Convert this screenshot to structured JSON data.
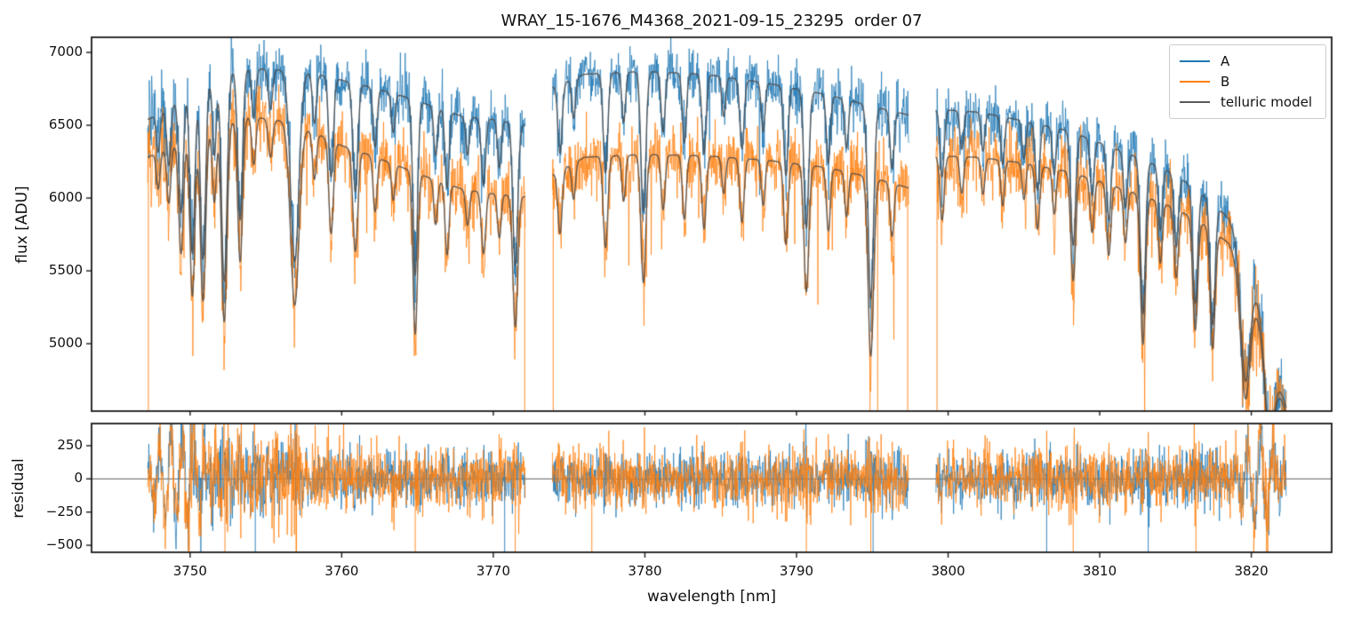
{
  "title": "WRAY_15-1676_M4368_2021-09-15_23295  order 07",
  "legend": {
    "location": "upper right",
    "items": [
      {
        "label": "A",
        "color": "#1f77b4"
      },
      {
        "label": "B",
        "color": "#ff7f0e"
      },
      {
        "label": "telluric model",
        "color": "#595959"
      }
    ]
  },
  "colors": {
    "series_A": "#1f77b4",
    "series_B": "#ff7f0e",
    "telluric_model": "#4a4a4a",
    "zero_line": "#606060",
    "spine": "#1a1a1a"
  },
  "chart_data": {
    "type": "line",
    "title": "WRAY_15-1676_M4368_2021-09-15_23295  order 07",
    "xlabel": "wavelength [nm]",
    "xlim": [
      3743.5,
      3825.3
    ],
    "xticks": [
      3750,
      3760,
      3770,
      3780,
      3790,
      3800,
      3810,
      3820
    ],
    "grid": false,
    "panels": [
      {
        "name": "flux",
        "ylabel": "flux [ADU]",
        "ylim": [
          4537,
          7104
        ],
        "yticks": [
          5000,
          5500,
          6000,
          6500,
          7000
        ]
      },
      {
        "name": "residual",
        "ylabel": "residual",
        "ylim": [
          -553,
          417
        ],
        "yticks": [
          250,
          0,
          -250,
          -500
        ],
        "zero_line": true
      }
    ],
    "segments_nm": [
      [
        3747.2,
        3772.1
      ],
      [
        3773.9,
        3797.4
      ],
      [
        3799.2,
        3822.3
      ]
    ],
    "continuum_A": [
      [
        3747.2,
        6540
      ],
      [
        3748.5,
        6610
      ],
      [
        3750,
        6760
      ],
      [
        3752,
        6860
      ],
      [
        3754,
        6890
      ],
      [
        3756,
        6880
      ],
      [
        3758,
        6860
      ],
      [
        3760,
        6810
      ],
      [
        3762,
        6760
      ],
      [
        3764,
        6700
      ],
      [
        3766,
        6630
      ],
      [
        3768,
        6560
      ],
      [
        3770,
        6540
      ],
      [
        3772.1,
        6500
      ],
      [
        3773.9,
        6760
      ],
      [
        3776,
        6850
      ],
      [
        3780,
        6870
      ],
      [
        3784,
        6850
      ],
      [
        3788,
        6790
      ],
      [
        3792,
        6710
      ],
      [
        3795,
        6630
      ],
      [
        3797.4,
        6570
      ],
      [
        3799.2,
        6610
      ],
      [
        3802,
        6590
      ],
      [
        3805,
        6530
      ],
      [
        3808,
        6460
      ],
      [
        3811,
        6340
      ],
      [
        3813,
        6260
      ],
      [
        3815,
        6160
      ],
      [
        3817,
        6010
      ],
      [
        3818.5,
        5860
      ],
      [
        3819.5,
        5620
      ],
      [
        3820.5,
        5270
      ],
      [
        3821.3,
        4920
      ],
      [
        3822.3,
        4560
      ]
    ],
    "continuum_B": [
      [
        3747.2,
        6280
      ],
      [
        3750,
        6410
      ],
      [
        3752,
        6510
      ],
      [
        3754,
        6560
      ],
      [
        3756,
        6530
      ],
      [
        3758,
        6460
      ],
      [
        3760,
        6360
      ],
      [
        3762,
        6290
      ],
      [
        3764,
        6210
      ],
      [
        3766,
        6130
      ],
      [
        3768,
        6060
      ],
      [
        3770,
        6030
      ],
      [
        3772.1,
        6010
      ],
      [
        3773.9,
        6160
      ],
      [
        3776,
        6280
      ],
      [
        3780,
        6300
      ],
      [
        3784,
        6290
      ],
      [
        3788,
        6260
      ],
      [
        3792,
        6210
      ],
      [
        3795,
        6140
      ],
      [
        3797.4,
        6070
      ],
      [
        3799.2,
        6290
      ],
      [
        3802,
        6280
      ],
      [
        3805,
        6240
      ],
      [
        3808,
        6180
      ],
      [
        3811,
        6080
      ],
      [
        3813,
        6010
      ],
      [
        3815,
        5930
      ],
      [
        3817,
        5810
      ],
      [
        3818.5,
        5690
      ],
      [
        3819.5,
        5470
      ],
      [
        3820.5,
        5170
      ],
      [
        3821.3,
        4870
      ],
      [
        3822.3,
        4520
      ]
    ],
    "telluric_lines": [
      [
        3747.9,
        0.04,
        0.12
      ],
      [
        3748.6,
        0.06,
        0.13
      ],
      [
        3749.4,
        0.12,
        0.15
      ],
      [
        3750.15,
        0.17,
        0.16
      ],
      [
        3750.85,
        0.18,
        0.17
      ],
      [
        3751.6,
        0.08,
        0.13
      ],
      [
        3752.25,
        0.21,
        0.18
      ],
      [
        3753.3,
        0.15,
        0.16
      ],
      [
        3754.2,
        0.05,
        0.13
      ],
      [
        3755.3,
        0.04,
        0.14
      ],
      [
        3756.9,
        0.19,
        0.28
      ],
      [
        3758.2,
        0.05,
        0.13
      ],
      [
        3759.3,
        0.1,
        0.15
      ],
      [
        3760.9,
        0.11,
        0.16
      ],
      [
        3762.2,
        0.06,
        0.13
      ],
      [
        3763.4,
        0.04,
        0.12
      ],
      [
        3764.85,
        0.18,
        0.15
      ],
      [
        3766.2,
        0.05,
        0.12
      ],
      [
        3766.95,
        0.08,
        0.13
      ],
      [
        3768.3,
        0.04,
        0.12
      ],
      [
        3769.35,
        0.07,
        0.14
      ],
      [
        3770.4,
        0.05,
        0.12
      ],
      [
        3771.45,
        0.15,
        0.16
      ],
      [
        3774.4,
        0.07,
        0.14
      ],
      [
        3775.3,
        0.04,
        0.12
      ],
      [
        3777.4,
        0.1,
        0.15
      ],
      [
        3778.6,
        0.05,
        0.12
      ],
      [
        3779.9,
        0.14,
        0.16
      ],
      [
        3781.2,
        0.06,
        0.13
      ],
      [
        3782.6,
        0.07,
        0.13
      ],
      [
        3783.9,
        0.08,
        0.14
      ],
      [
        3785.2,
        0.04,
        0.12
      ],
      [
        3786.4,
        0.07,
        0.14
      ],
      [
        3787.8,
        0.05,
        0.12
      ],
      [
        3789.3,
        0.09,
        0.14
      ],
      [
        3790.65,
        0.14,
        0.16
      ],
      [
        3792.1,
        0.07,
        0.13
      ],
      [
        3793.3,
        0.05,
        0.12
      ],
      [
        3794.9,
        0.2,
        0.18
      ],
      [
        3796.3,
        0.06,
        0.13
      ],
      [
        3799.6,
        0.07,
        0.14
      ],
      [
        3800.9,
        0.04,
        0.12
      ],
      [
        3802.3,
        0.04,
        0.12
      ],
      [
        3803.6,
        0.05,
        0.12
      ],
      [
        3805.0,
        0.04,
        0.12
      ],
      [
        3805.9,
        0.07,
        0.14
      ],
      [
        3807.0,
        0.05,
        0.12
      ],
      [
        3808.25,
        0.12,
        0.16
      ],
      [
        3809.5,
        0.06,
        0.13
      ],
      [
        3810.6,
        0.08,
        0.14
      ],
      [
        3811.7,
        0.06,
        0.13
      ],
      [
        3812.85,
        0.17,
        0.16
      ],
      [
        3814.0,
        0.07,
        0.13
      ],
      [
        3815.05,
        0.08,
        0.14
      ],
      [
        3816.3,
        0.13,
        0.16
      ],
      [
        3817.45,
        0.14,
        0.16
      ],
      [
        3819.6,
        0.15,
        0.3
      ],
      [
        3821.2,
        0.12,
        0.3
      ]
    ],
    "noise": {
      "sigma_A": 95,
      "sigma_B": 110,
      "left_edge_boost": 1.0,
      "right_edge_boost": 0.6,
      "line_boost": 2.4,
      "spike_prob_A": 0.002,
      "spike_prob_B": 0.004
    },
    "flux_drop_lines_B": [
      3747.25,
      3772.07,
      3773.95,
      3794.85,
      3795.35,
      3797.33,
      3799.27
    ],
    "residual": {
      "sigma_A": 95,
      "sigma_B": 115,
      "line_burst": 3.5,
      "mid_envelope_boost": 0.5,
      "packets": [
        [
          3749.3,
          320,
          0.75,
          1.4
        ],
        [
          3820.4,
          340,
          0.85,
          0.85
        ]
      ],
      "drop_lines_A": [
        3754.3,
        3770.75,
        3795.05,
        3806.5,
        3813.2
      ],
      "drop_lines_B": [
        3749.95,
        3752.3,
        3757.0,
        3764.85,
        3771.45,
        3776.5,
        3790.65,
        3794.9,
        3808.25,
        3816.35,
        3821.0
      ]
    },
    "seed": 20210915
  }
}
